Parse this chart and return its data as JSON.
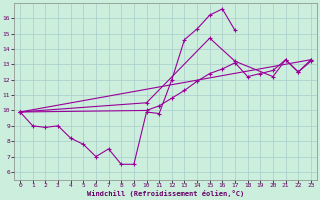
{
  "xlabel": "Windchill (Refroidissement éolien,°C)",
  "bg_color": "#cceedd",
  "grid_color": "#aacccc",
  "line_color": "#990099",
  "xlim": [
    -0.5,
    23.5
  ],
  "ylim": [
    5.5,
    17.0
  ],
  "xticks": [
    0,
    1,
    2,
    3,
    4,
    5,
    6,
    7,
    8,
    9,
    10,
    11,
    12,
    13,
    14,
    15,
    16,
    17,
    18,
    19,
    20,
    21,
    22,
    23
  ],
  "yticks": [
    6,
    7,
    8,
    9,
    10,
    11,
    12,
    13,
    14,
    15,
    16
  ],
  "series": [
    {
      "x": [
        0,
        1,
        2,
        3,
        4,
        5,
        6,
        7,
        8,
        9,
        10,
        11,
        12,
        13,
        14,
        15,
        16,
        17
      ],
      "y": [
        9.9,
        9.0,
        8.9,
        9.0,
        8.2,
        7.8,
        7.0,
        7.5,
        6.5,
        6.5,
        9.9,
        9.8,
        12.0,
        14.6,
        15.3,
        16.2,
        16.6,
        15.2
      ]
    },
    {
      "x": [
        0,
        10,
        11,
        12,
        13,
        14,
        15,
        16,
        17,
        18,
        19,
        20,
        21,
        22,
        23
      ],
      "y": [
        9.9,
        10.0,
        10.3,
        10.8,
        11.3,
        11.9,
        12.4,
        12.7,
        13.1,
        12.2,
        12.4,
        12.6,
        13.3,
        12.5,
        13.3
      ]
    },
    {
      "x": [
        0,
        23
      ],
      "y": [
        9.9,
        13.3
      ]
    },
    {
      "x": [
        0,
        10,
        15,
        17,
        20,
        21,
        22,
        23
      ],
      "y": [
        9.9,
        10.5,
        14.7,
        13.2,
        12.2,
        13.3,
        12.5,
        13.2
      ]
    }
  ]
}
